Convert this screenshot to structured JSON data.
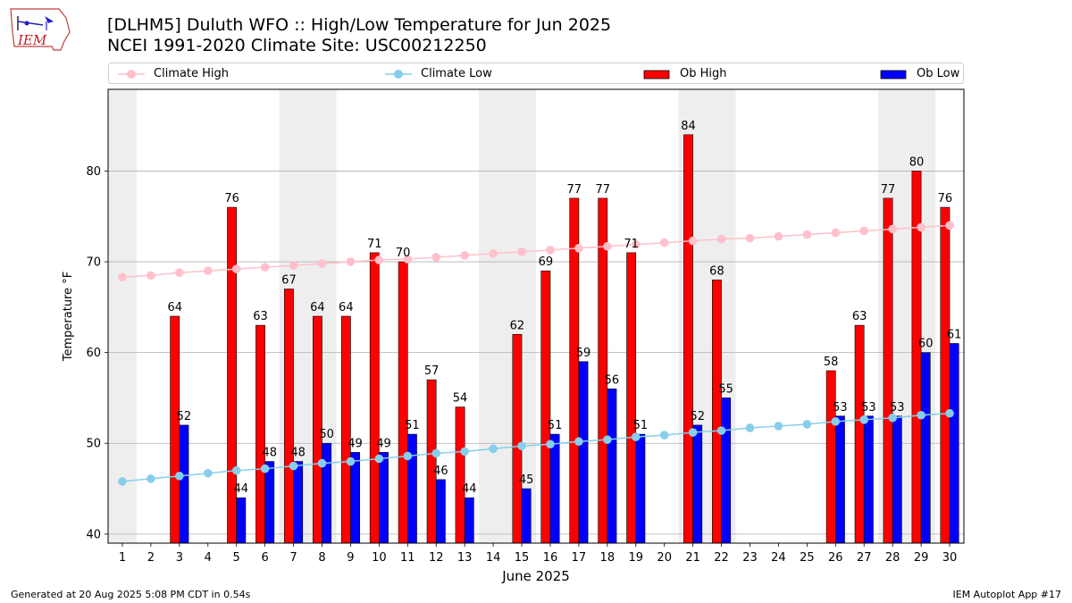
{
  "title": "[DLHM5] Duluth WFO :: High/Low Temperature for Jun 2025",
  "subtitle": "NCEI 1991-2020 Climate Site: USC00212250",
  "logo_text": "IEM",
  "footer_left": "Generated at 20 Aug 2025 5:08 PM CDT in 0.54s",
  "footer_right": "IEM Autoplot App #17",
  "colors": {
    "ob_high": "#ff0000",
    "ob_low": "#0000ff",
    "climate_high": "#ffc0cb",
    "climate_low": "#87ceeb",
    "weekend_band": "#eeeeee",
    "grid": "#b0b0b0"
  },
  "legend": {
    "climate_high": "Climate High",
    "climate_low": "Climate Low",
    "ob_high": "Ob High",
    "ob_low": "Ob Low"
  },
  "chart_data": {
    "type": "bar",
    "xlabel": "June 2025",
    "ylabel": "Temperature °F",
    "ylim": [
      39,
      89
    ],
    "yticks": [
      40,
      50,
      60,
      70,
      80
    ],
    "grid": "horizontal",
    "legend_position": "top",
    "categories": [
      1,
      2,
      3,
      4,
      5,
      6,
      7,
      8,
      9,
      10,
      11,
      12,
      13,
      14,
      15,
      16,
      17,
      18,
      19,
      20,
      21,
      22,
      23,
      24,
      25,
      26,
      27,
      28,
      29,
      30
    ],
    "shaded_days": [
      1,
      7,
      8,
      14,
      15,
      21,
      22,
      28,
      29
    ],
    "series": [
      {
        "name": "Ob High",
        "values": [
          null,
          null,
          64,
          null,
          76,
          63,
          67,
          64,
          64,
          71,
          70,
          57,
          54,
          null,
          62,
          69,
          77,
          77,
          71,
          null,
          84,
          68,
          null,
          null,
          null,
          58,
          63,
          77,
          80,
          76
        ]
      },
      {
        "name": "Ob Low",
        "values": [
          null,
          null,
          52,
          null,
          44,
          48,
          48,
          50,
          49,
          49,
          51,
          46,
          44,
          null,
          45,
          51,
          59,
          56,
          51,
          null,
          52,
          55,
          null,
          null,
          null,
          53,
          53,
          53,
          60,
          61
        ]
      },
      {
        "name": "Climate High",
        "values": [
          68.3,
          68.5,
          68.8,
          69.0,
          69.2,
          69.4,
          69.6,
          69.8,
          70.0,
          70.2,
          70.3,
          70.5,
          70.7,
          70.9,
          71.1,
          71.3,
          71.5,
          71.7,
          71.9,
          72.1,
          72.3,
          72.5,
          72.6,
          72.8,
          73.0,
          73.2,
          73.4,
          73.6,
          73.8,
          74.0
        ]
      },
      {
        "name": "Climate Low",
        "values": [
          45.8,
          46.1,
          46.4,
          46.7,
          47.0,
          47.2,
          47.5,
          47.8,
          48.0,
          48.3,
          48.6,
          48.9,
          49.1,
          49.4,
          49.7,
          49.9,
          50.2,
          50.4,
          50.7,
          50.9,
          51.2,
          51.4,
          51.7,
          51.9,
          52.1,
          52.4,
          52.6,
          52.8,
          53.1,
          53.3
        ]
      }
    ]
  }
}
